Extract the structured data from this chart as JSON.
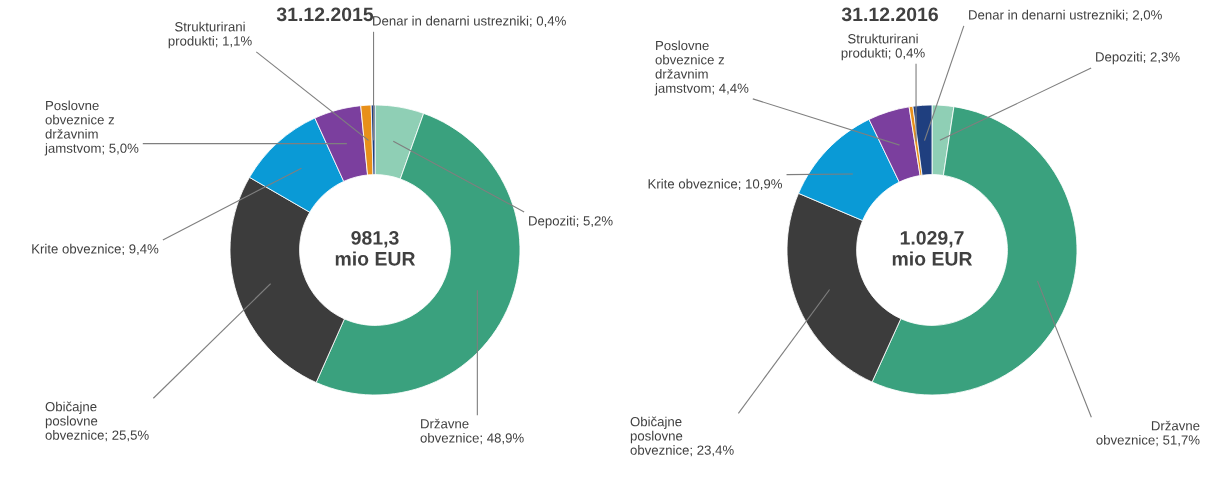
{
  "chart_data": [
    {
      "type": "donut",
      "title": "31.12.2015",
      "categories": [
        "Depoziti",
        "Državne obveznice",
        "Običajne poslovne obveznice",
        "Krite obveznice",
        "Poslovne obveznice z državnim jamstvom",
        "Strukturirani produkti",
        "Denar in denarni ustrezniki"
      ],
      "values": [
        5.2,
        48.9,
        25.5,
        9.4,
        5.0,
        1.1,
        0.4
      ],
      "value_labels": [
        "5,2%",
        "48,9%",
        "25,5%",
        "9,4%",
        "5,0%",
        "1,1%",
        "0,4%"
      ],
      "colors": [
        "#8fcfb5",
        "#3aa17e",
        "#3c3c3c",
        "#0a9ad6",
        "#7b3f9e",
        "#e8901a",
        "#1f3f7f"
      ],
      "annotations": [
        "981,3\nmio EUR"
      ]
    },
    {
      "type": "donut",
      "title": "31.12.2016",
      "categories": [
        "Depoziti",
        "Državne obveznice",
        "Običajne poslovne obveznice",
        "Krite obveznice",
        "Poslovne obveznice z državnim jamstvom",
        "Strukturirani produkti",
        "Denar in denarni ustrezniki"
      ],
      "values": [
        2.3,
        51.7,
        23.4,
        10.9,
        4.4,
        0.4,
        2.0
      ],
      "value_labels": [
        "2,3%",
        "51,7%",
        "23,4%",
        "10,9%",
        "4,4%",
        "0,4%",
        "2,0%"
      ],
      "colors": [
        "#8fcfb5",
        "#3aa17e",
        "#3c3c3c",
        "#0a9ad6",
        "#7b3f9e",
        "#e8901a",
        "#1f3f7f"
      ],
      "annotations": [
        "1.029,7\nmio EUR"
      ]
    }
  ]
}
